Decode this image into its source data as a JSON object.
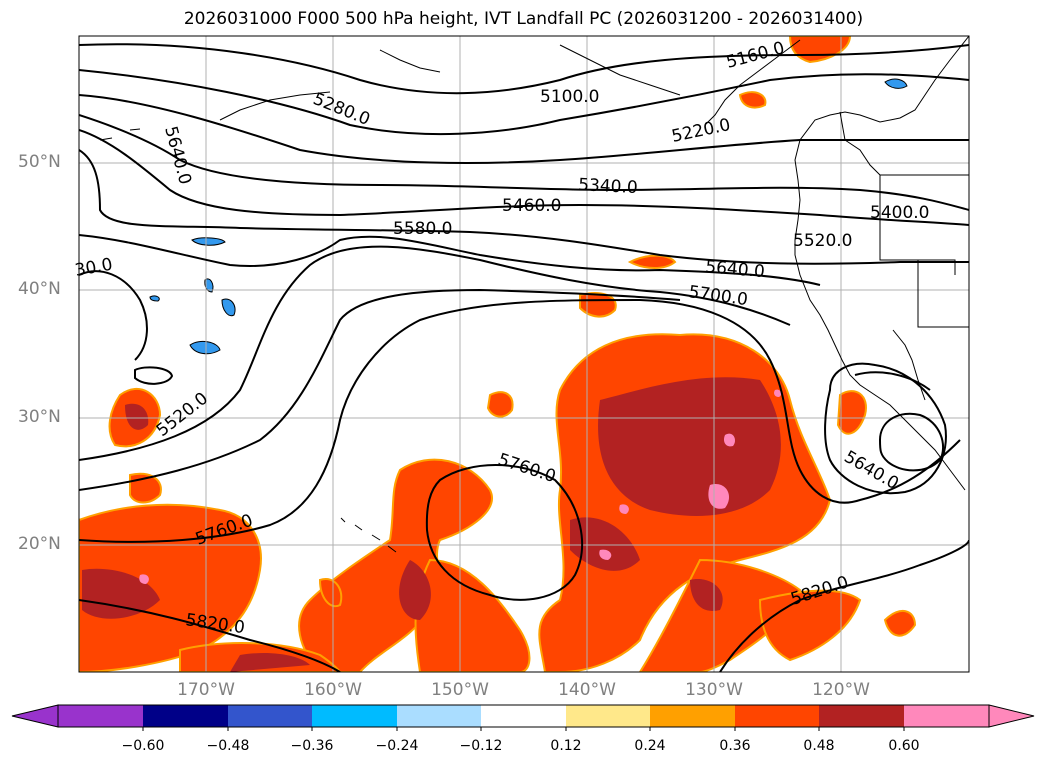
{
  "title": "2026031000 F000 500 hPa height, IVT Landfall PC (2026031200 - 2026031400)",
  "map": {
    "lat_labels": [
      "50°N",
      "40°N",
      "30°N",
      "20°N"
    ],
    "lon_labels": [
      "170°W",
      "160°W",
      "150°W",
      "140°W",
      "130°W",
      "120°W"
    ],
    "contour_labels": [
      "5160.0",
      "5100.0",
      "5280.0",
      "5220.0",
      "5640.0",
      "5340.0",
      "5460.0",
      "5400.0",
      "5580.0",
      "5520.0",
      "5640.0",
      "30.0",
      "5700.0",
      "5520.0",
      "5760.0",
      "5640.0",
      "5760.0",
      "5820.0",
      "5820.0"
    ]
  },
  "colorbar": {
    "tick_labels": [
      "−0.60",
      "−0.48",
      "−0.36",
      "−0.24",
      "−0.12",
      "0.12",
      "0.24",
      "0.36",
      "0.48",
      "0.60"
    ],
    "colors": [
      "#9933cc",
      "#000088",
      "#3355cc",
      "#00bbff",
      "#aaddff",
      "#ffffff",
      "#ffe88a",
      "#ffa000",
      "#ff4500",
      "#b22222",
      "#ff88bb"
    ]
  },
  "colors": {
    "shade_orange": "#ff4500",
    "shade_red": "#b22222",
    "shade_pink": "#ff88bb",
    "shade_edge": "#ffa000",
    "ocean": "#ffffff"
  }
}
